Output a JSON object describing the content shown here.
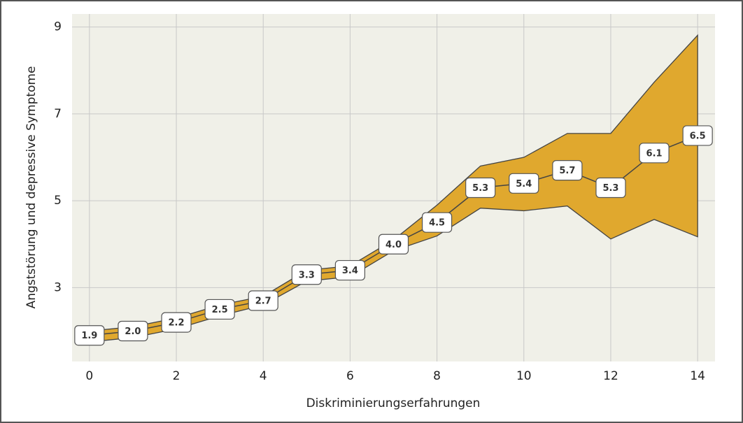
{
  "chart_data": {
    "type": "line",
    "x_label": "Diskriminierungserfahrungen",
    "y_label": "Angststörung und depressive Symptome",
    "x": [
      0,
      1,
      2,
      3,
      4,
      5,
      6,
      7,
      8,
      9,
      10,
      11,
      12,
      13,
      14
    ],
    "series": [
      {
        "color": "#444444",
        "band_color": "#e0a82e",
        "values": [
          1.9,
          2.0,
          2.2,
          2.5,
          2.7,
          3.3,
          3.4,
          4.0,
          4.5,
          5.3,
          5.4,
          5.7,
          5.3,
          6.1,
          6.5
        ],
        "value_labels": [
          "1.9",
          "2.0",
          "2.2",
          "2.5",
          "2.7",
          "3.3",
          "3.4",
          "4.0",
          "4.5",
          "5.3",
          "5.4",
          "5.7",
          "5.3",
          "6.1",
          "6.5"
        ],
        "upper": [
          2.0,
          2.1,
          2.3,
          2.6,
          2.8,
          3.4,
          3.5,
          4.1,
          4.9,
          5.8,
          6.0,
          6.55,
          6.55,
          7.73,
          8.81
        ],
        "lower": [
          1.75,
          1.85,
          2.05,
          2.35,
          2.6,
          3.15,
          3.25,
          3.85,
          4.19,
          4.83,
          4.77,
          4.88,
          4.12,
          4.57,
          4.17
        ]
      }
    ],
    "xlim": [
      -0.4,
      14.4
    ],
    "xticks": [
      0,
      2,
      4,
      6,
      8,
      10,
      12,
      14
    ],
    "ylim": [
      1.3,
      9.3
    ],
    "yticks": [
      3,
      5,
      7,
      9
    ],
    "grid": true
  }
}
